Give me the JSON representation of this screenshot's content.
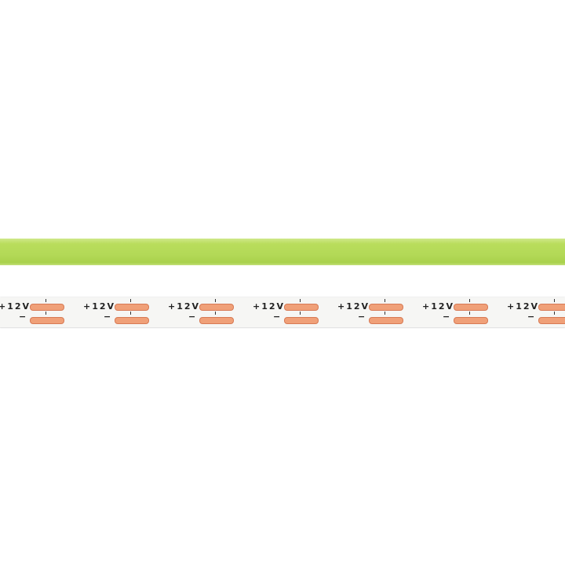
{
  "image": {
    "subject": "LED strip product photo",
    "colors": {
      "cob_strip": "#b3d957",
      "pcb": "#f6f6f4",
      "pads": "#f0a078"
    }
  },
  "strip": {
    "voltage_label": "+12V",
    "negative_label": "−",
    "segment_count": 7
  }
}
